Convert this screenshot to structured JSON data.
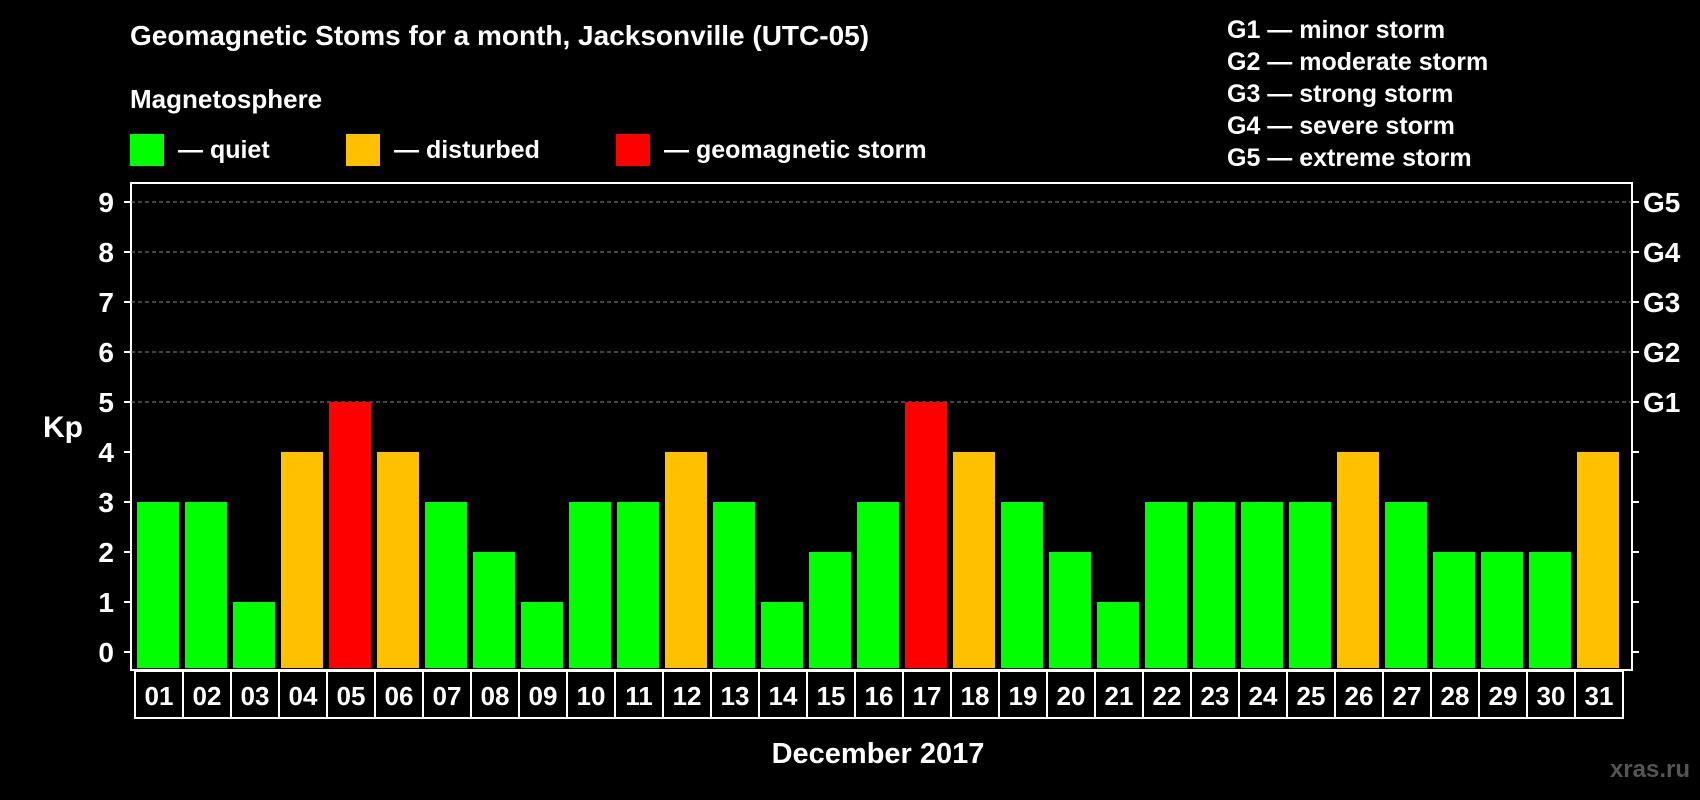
{
  "title": "Geomagnetic Stoms for a month, Jacksonville (UTC-05)",
  "subtitle": "Magnetosphere",
  "legend": [
    {
      "label": "— quiet",
      "color": "#00ff00"
    },
    {
      "label": "— disturbed",
      "color": "#ffc000"
    },
    {
      "label": "— geomagnetic storm",
      "color": "#ff0000"
    }
  ],
  "g_levels": [
    "G1 — minor storm",
    "G2 — moderate storm",
    "G3 — strong storm",
    "G4 — severe storm",
    "G5 — extreme storm"
  ],
  "watermark": "xras.ru",
  "colors": {
    "quiet": "#00ff00",
    "disturbed": "#ffc000",
    "storm": "#ff0000"
  },
  "chart_data": {
    "type": "bar",
    "title": "Geomagnetic Stoms for a month, Jacksonville (UTC-05)",
    "xlabel": "December 2017",
    "ylabel": "Kp",
    "ylim": [
      0,
      9
    ],
    "yticks": [
      0,
      1,
      2,
      3,
      4,
      5,
      6,
      7,
      8,
      9
    ],
    "right_axis_labels": [
      {
        "value": 5,
        "label": "G1"
      },
      {
        "value": 6,
        "label": "G2"
      },
      {
        "value": 7,
        "label": "G3"
      },
      {
        "value": 8,
        "label": "G4"
      },
      {
        "value": 9,
        "label": "G5"
      }
    ],
    "grid": true,
    "categories": [
      "01",
      "02",
      "03",
      "04",
      "05",
      "06",
      "07",
      "08",
      "09",
      "10",
      "11",
      "12",
      "13",
      "14",
      "15",
      "16",
      "17",
      "18",
      "19",
      "20",
      "21",
      "22",
      "23",
      "24",
      "25",
      "26",
      "27",
      "28",
      "29",
      "30",
      "31"
    ],
    "values": [
      3,
      3,
      1,
      4,
      5,
      4,
      3,
      2,
      1,
      3,
      3,
      4,
      3,
      1,
      2,
      3,
      5,
      4,
      3,
      2,
      1,
      3,
      3,
      3,
      3,
      4,
      3,
      2,
      2,
      2,
      4
    ]
  }
}
